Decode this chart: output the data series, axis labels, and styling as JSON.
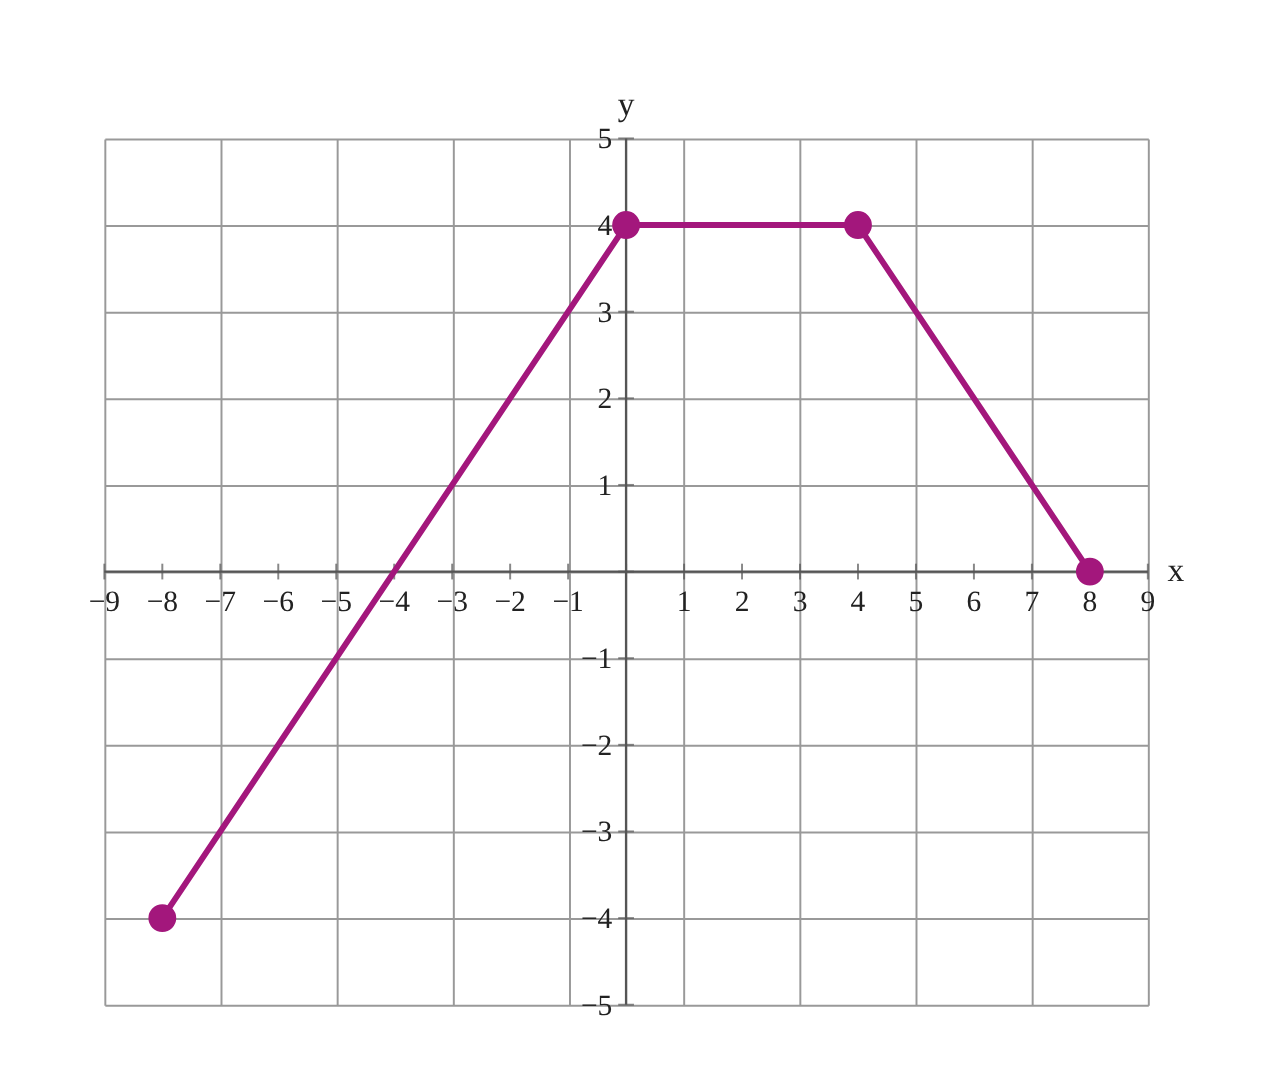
{
  "chart_data": {
    "type": "line",
    "xlabel": "x",
    "ylabel": "y",
    "x": [
      -8,
      0,
      4,
      8
    ],
    "series": [
      {
        "color": "#a3177c",
        "values": [
          -4,
          4,
          4,
          0
        ]
      }
    ],
    "xlim": [
      -9,
      9
    ],
    "ylim": [
      -5,
      5
    ],
    "xticks": [
      -9,
      -8,
      -7,
      -6,
      -5,
      -4,
      -3,
      -2,
      -1,
      {
        "value": 0,
        "label": null
      },
      1,
      2,
      3,
      4,
      5,
      6,
      7,
      8,
      9
    ],
    "yticks": [
      -5,
      -4,
      -3,
      -2,
      -1,
      {
        "value": 0,
        "label": null
      },
      1,
      2,
      3,
      4,
      5
    ],
    "grid": true,
    "marker": "circle",
    "line_style": "solid"
  }
}
